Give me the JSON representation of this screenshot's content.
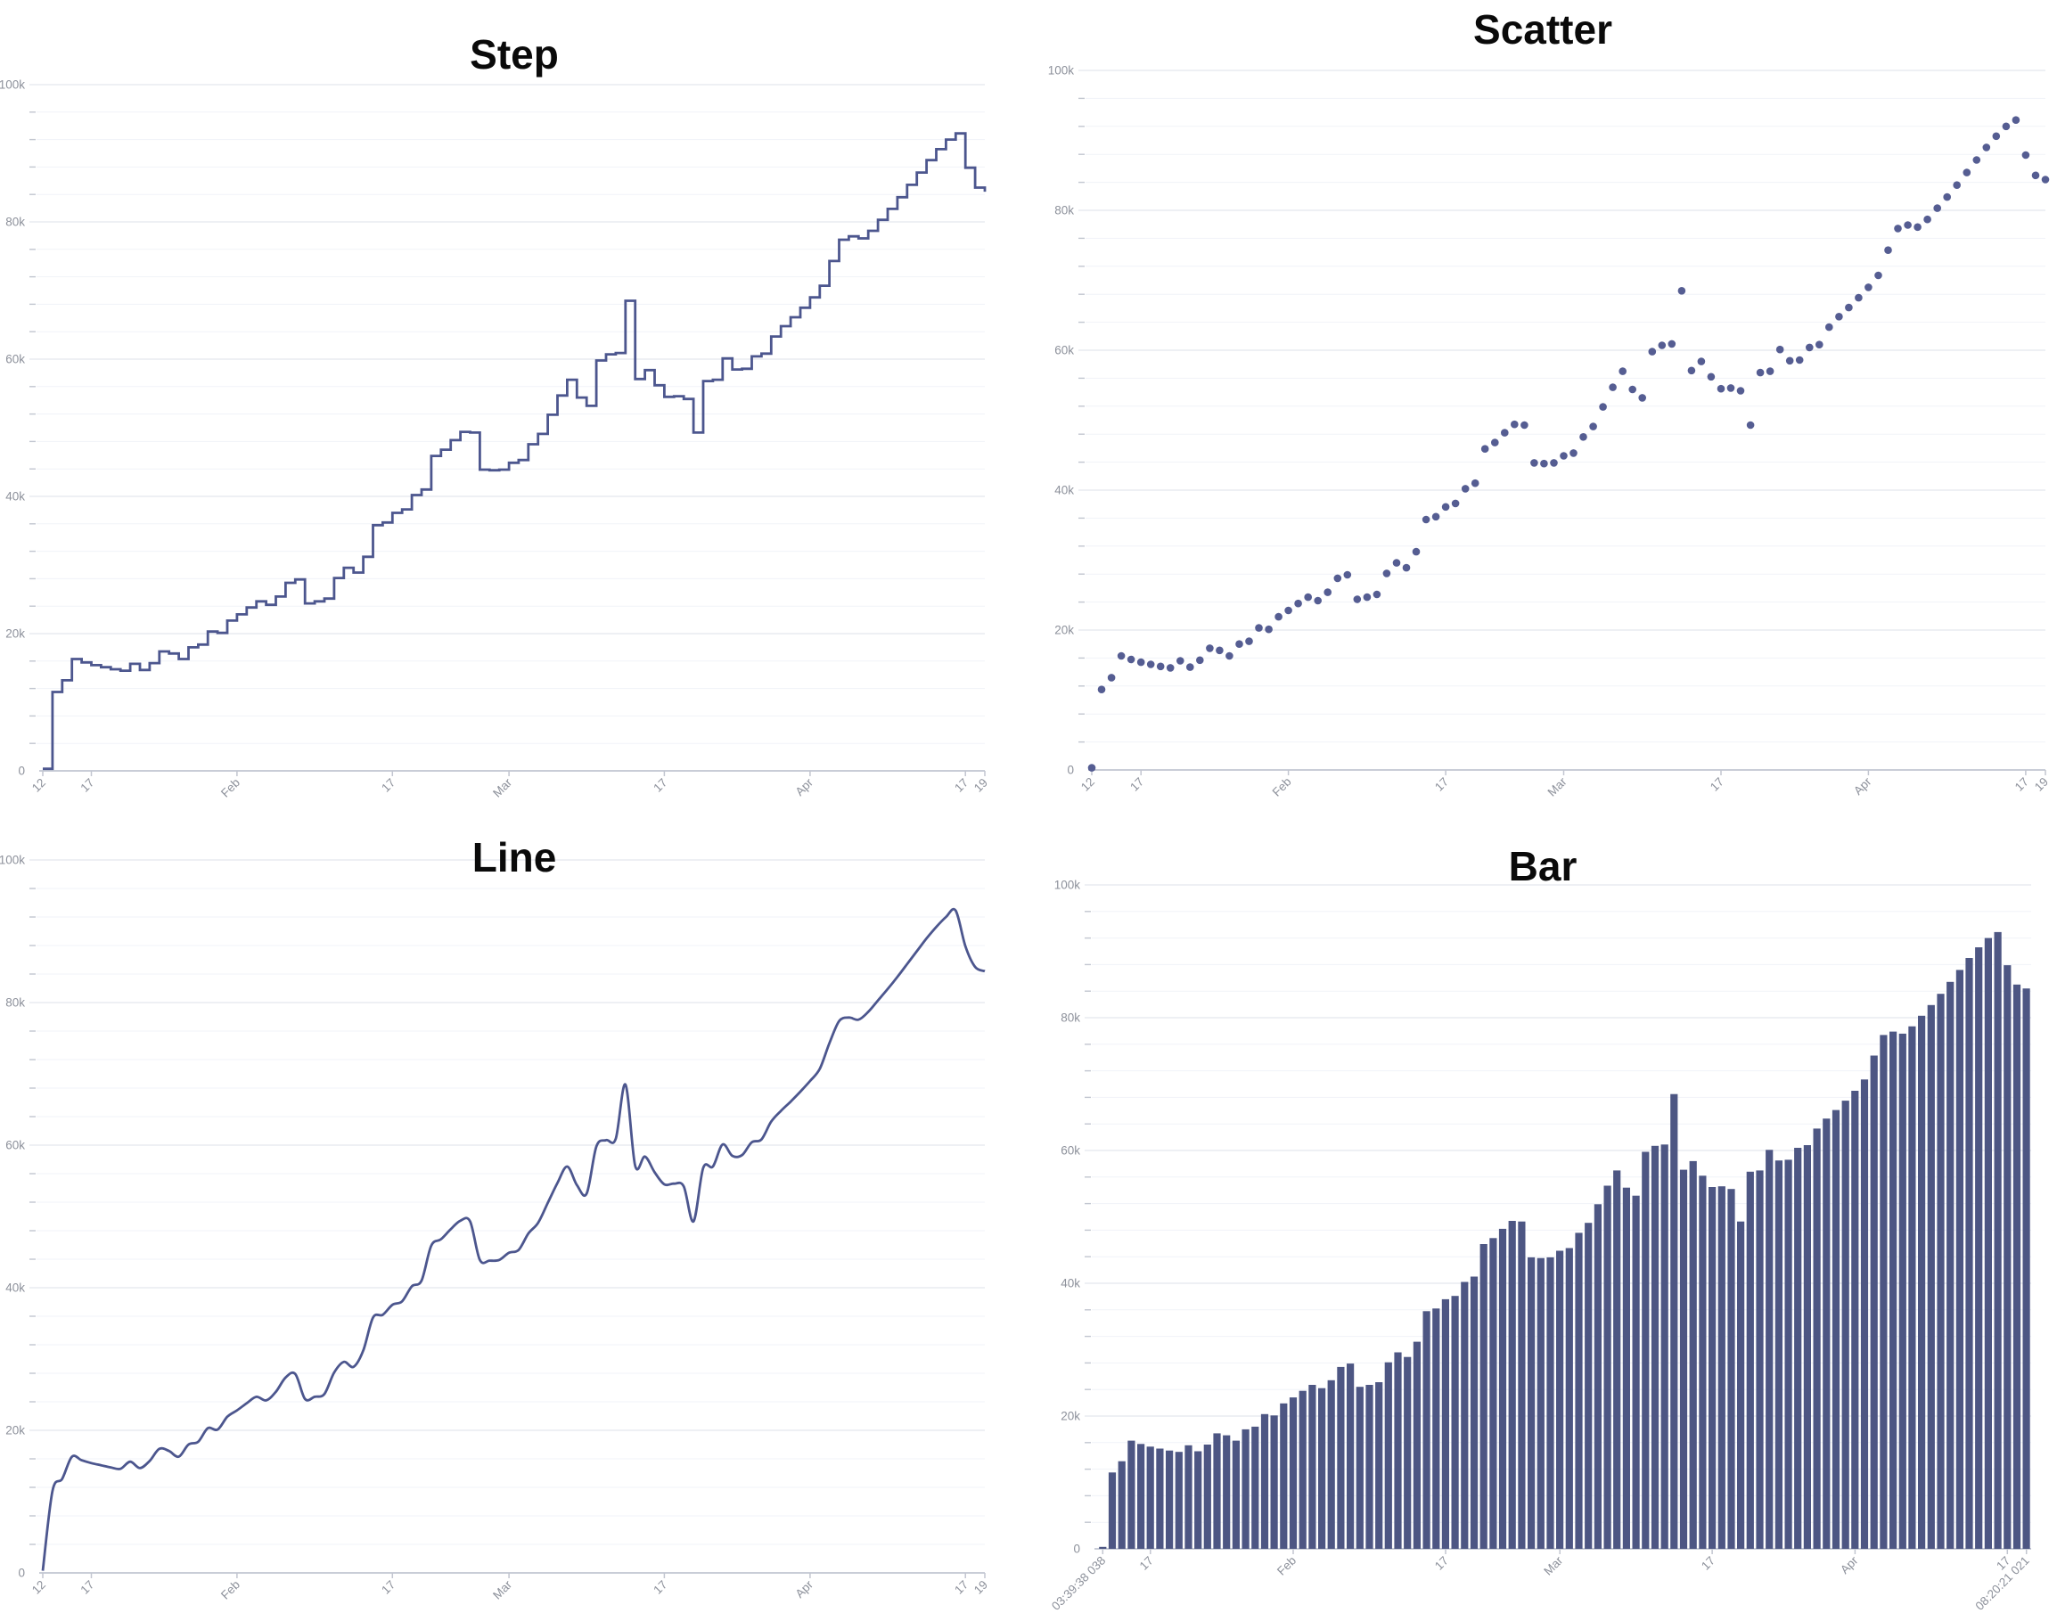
{
  "page": {
    "background": "#ffffff"
  },
  "chart_data": {
    "layout": "2x2 grid; four renderings of the same daily time series",
    "x_axis": {
      "type": "time",
      "start": "Jan 12",
      "end": "Apr 19",
      "n_points": 98,
      "ticks_days": [
        0,
        5,
        20,
        36,
        48,
        64,
        79,
        95,
        97
      ]
    },
    "y_axis": {
      "min": 0,
      "max": 100000,
      "major_step": 20000,
      "minor_step": 4000,
      "major_tick_labels": [
        "0",
        "20k",
        "40k",
        "60k",
        "80k",
        "100k"
      ],
      "grid": true
    },
    "values": [
      300,
      11500,
      13200,
      16300,
      15800,
      15400,
      15100,
      14800,
      14600,
      15600,
      14700,
      15700,
      17400,
      17100,
      16300,
      18000,
      18400,
      20300,
      20100,
      21900,
      22800,
      23800,
      24700,
      24200,
      25400,
      27400,
      27900,
      24400,
      24700,
      25100,
      28100,
      29600,
      28900,
      31200,
      35800,
      36200,
      37600,
      38100,
      40200,
      41000,
      45900,
      46800,
      48200,
      49400,
      49300,
      43900,
      43800,
      43900,
      44900,
      45300,
      47600,
      49100,
      51900,
      54700,
      57000,
      54400,
      53200,
      59800,
      60700,
      60900,
      68500,
      57100,
      58400,
      56200,
      54500,
      54600,
      54200,
      49300,
      56800,
      57000,
      60100,
      58500,
      58600,
      60400,
      60800,
      63300,
      64800,
      66100,
      67500,
      69000,
      70700,
      74300,
      77400,
      77900,
      77600,
      78700,
      80300,
      81900,
      83600,
      85400,
      87200,
      89000,
      90600,
      92000,
      92900,
      87900,
      85000,
      84400
    ],
    "charts": [
      {
        "position": "top-left",
        "type": "step",
        "title": "Step",
        "x_tick_labels": [
          "12",
          "17",
          "Feb",
          "17",
          "Mar",
          "17",
          "Apr",
          "17",
          "19"
        ]
      },
      {
        "position": "top-right",
        "type": "scatter",
        "title": "Scatter",
        "x_tick_labels": [
          "12",
          "17",
          "Feb",
          "17",
          "Mar",
          "17",
          "Apr",
          "17",
          "19"
        ]
      },
      {
        "position": "bottom-left",
        "type": "line",
        "title": "Line",
        "x_tick_labels": [
          "12",
          "17",
          "Feb",
          "17",
          "Mar",
          "17",
          "Apr",
          "17",
          "19"
        ]
      },
      {
        "position": "bottom-right",
        "type": "bar",
        "title": "Bar",
        "x_tick_labels": [
          "03:39:38 038",
          "17",
          "Feb",
          "17",
          "Mar",
          "17",
          "Apr",
          "17",
          "08:20:21 021"
        ]
      }
    ],
    "colors": {
      "series_stroke": "#4c568e",
      "scatter_dot": "#555d92",
      "bar_fill": "#4d5683",
      "grid_major": "#e4e7ee",
      "grid_minor": "#f1f3f8",
      "axis_line": "#c9cdd7",
      "tick_mark": "#c2c6d0",
      "tick_label": "#8d919b",
      "title": "#0a0a0a"
    }
  }
}
